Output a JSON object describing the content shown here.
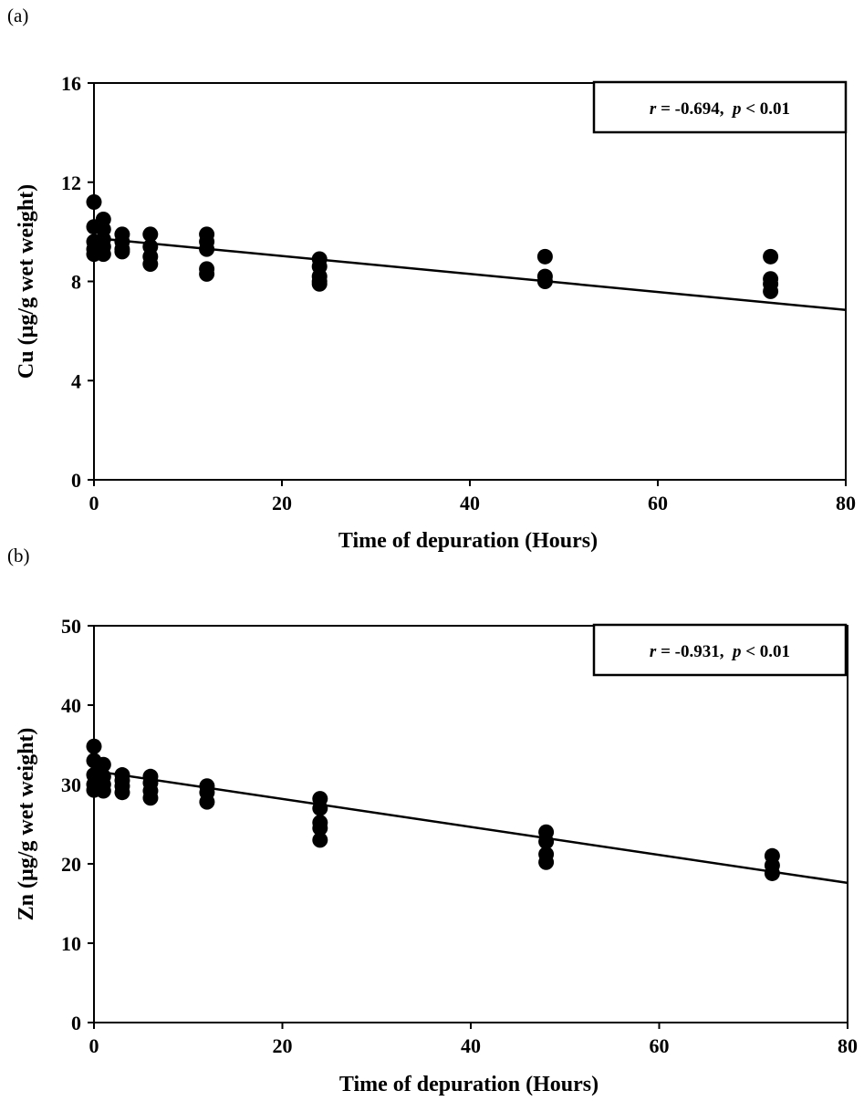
{
  "chart_data": [
    {
      "type": "scatter",
      "panel_label": "(a)",
      "xlabel": "Time of depuration (Hours)",
      "ylabel": "Cu (µg/g wet weight)",
      "xlim": [
        0,
        80
      ],
      "ylim": [
        0,
        16
      ],
      "xticks": [
        0,
        20,
        40,
        60,
        80
      ],
      "yticks": [
        0,
        4,
        8,
        12,
        16
      ],
      "grid": false,
      "annotation": {
        "r_symbol": "r",
        "r_value": " = -0.694,  ",
        "p_symbol": "p",
        "p_value": " < 0.01",
        "placement": "top-right"
      },
      "points": [
        [
          0,
          11.2
        ],
        [
          0,
          10.2
        ],
        [
          0,
          9.6
        ],
        [
          0,
          9.3
        ],
        [
          0,
          9.1
        ],
        [
          1,
          10.5
        ],
        [
          1,
          10.1
        ],
        [
          1,
          9.7
        ],
        [
          1,
          9.4
        ],
        [
          1,
          9.1
        ],
        [
          3,
          9.9
        ],
        [
          3,
          9.6
        ],
        [
          3,
          9.3
        ],
        [
          3,
          9.2
        ],
        [
          6,
          9.9
        ],
        [
          6,
          9.4
        ],
        [
          6,
          9.0
        ],
        [
          6,
          8.7
        ],
        [
          12,
          9.9
        ],
        [
          12,
          9.6
        ],
        [
          12,
          9.3
        ],
        [
          12,
          8.5
        ],
        [
          12,
          8.3
        ],
        [
          24,
          8.9
        ],
        [
          24,
          8.6
        ],
        [
          24,
          8.2
        ],
        [
          24,
          8.0
        ],
        [
          24,
          7.9
        ],
        [
          48,
          9.0
        ],
        [
          48,
          8.2
        ],
        [
          48,
          8.0
        ],
        [
          72,
          9.0
        ],
        [
          72,
          8.1
        ],
        [
          72,
          7.9
        ],
        [
          72,
          7.6
        ]
      ],
      "trendline": [
        [
          0,
          9.75
        ],
        [
          80,
          6.85
        ]
      ]
    },
    {
      "type": "scatter",
      "panel_label": "(b)",
      "xlabel": "Time of depuration (Hours)",
      "ylabel": "Zn (µg/g wet weight)",
      "xlim": [
        0,
        80
      ],
      "ylim": [
        0,
        50
      ],
      "xticks": [
        0,
        20,
        40,
        60,
        80
      ],
      "yticks": [
        0,
        10,
        20,
        30,
        40,
        50
      ],
      "grid": false,
      "annotation": {
        "r_symbol": "r",
        "r_value": " = -0.931,  ",
        "p_symbol": "p",
        "p_value": " < 0.01",
        "placement": "top-right"
      },
      "points": [
        [
          0,
          34.8
        ],
        [
          0,
          33.0
        ],
        [
          0,
          31.2
        ],
        [
          0,
          30.0
        ],
        [
          0,
          29.3
        ],
        [
          1,
          32.5
        ],
        [
          1,
          31.0
        ],
        [
          1,
          30.0
        ],
        [
          1,
          29.2
        ],
        [
          3,
          31.2
        ],
        [
          3,
          30.5
        ],
        [
          3,
          29.8
        ],
        [
          3,
          29.0
        ],
        [
          6,
          31.0
        ],
        [
          6,
          30.2
        ],
        [
          6,
          29.2
        ],
        [
          6,
          28.3
        ],
        [
          12,
          29.8
        ],
        [
          12,
          29.0
        ],
        [
          12,
          27.8
        ],
        [
          24,
          28.2
        ],
        [
          24,
          27.0
        ],
        [
          24,
          25.2
        ],
        [
          24,
          24.5
        ],
        [
          24,
          23.0
        ],
        [
          48,
          24.0
        ],
        [
          48,
          22.8
        ],
        [
          48,
          21.2
        ],
        [
          48,
          20.2
        ],
        [
          72,
          21.0
        ],
        [
          72,
          19.8
        ],
        [
          72,
          18.8
        ]
      ],
      "trendline": [
        [
          0,
          31.7
        ],
        [
          80,
          17.6
        ]
      ]
    }
  ]
}
